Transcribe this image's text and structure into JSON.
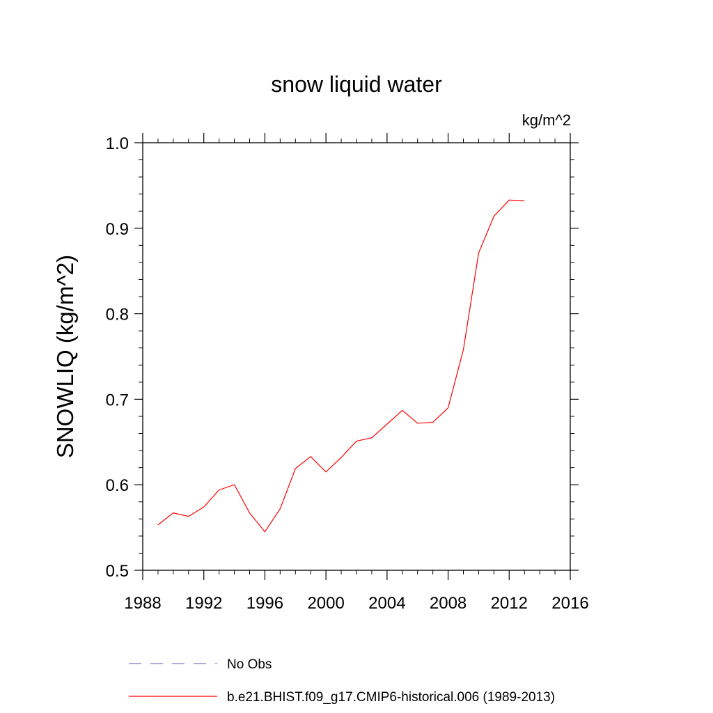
{
  "chart_data": {
    "type": "line",
    "title": "snow liquid water",
    "units_label": "kg/m^2",
    "ylabel": "SNOWLIQ  (kg/m^2)",
    "xlabel": "",
    "xlim": [
      1988,
      2016
    ],
    "ylim": [
      0.5,
      1.0
    ],
    "x_ticks": [
      "1988",
      "1992",
      "1996",
      "2000",
      "2004",
      "2008",
      "2012",
      "2016"
    ],
    "y_ticks": [
      "0.5",
      "0.6",
      "0.7",
      "0.8",
      "0.9",
      "1.0"
    ],
    "grid": false,
    "legend_position": "bottom",
    "series": [
      {
        "name": "No Obs",
        "color": "#7777cc",
        "style": "dashed",
        "x": [],
        "values": []
      },
      {
        "name": "b.e21.BHIST.f09_g17.CMIP6-historical.006 (1989-2013)",
        "color": "#ff0000",
        "style": "solid",
        "x": [
          1989,
          1990,
          1991,
          1992,
          1993,
          1994,
          1995,
          1996,
          1997,
          1998,
          1999,
          2000,
          2001,
          2002,
          2003,
          2004,
          2005,
          2006,
          2007,
          2008,
          2009,
          2010,
          2011,
          2012,
          2013
        ],
        "values": [
          0.553,
          0.567,
          0.563,
          0.574,
          0.594,
          0.6,
          0.567,
          0.545,
          0.572,
          0.619,
          0.633,
          0.615,
          0.632,
          0.651,
          0.655,
          0.671,
          0.687,
          0.672,
          0.673,
          0.69,
          0.758,
          0.871,
          0.914,
          0.933,
          0.932
        ]
      }
    ]
  }
}
